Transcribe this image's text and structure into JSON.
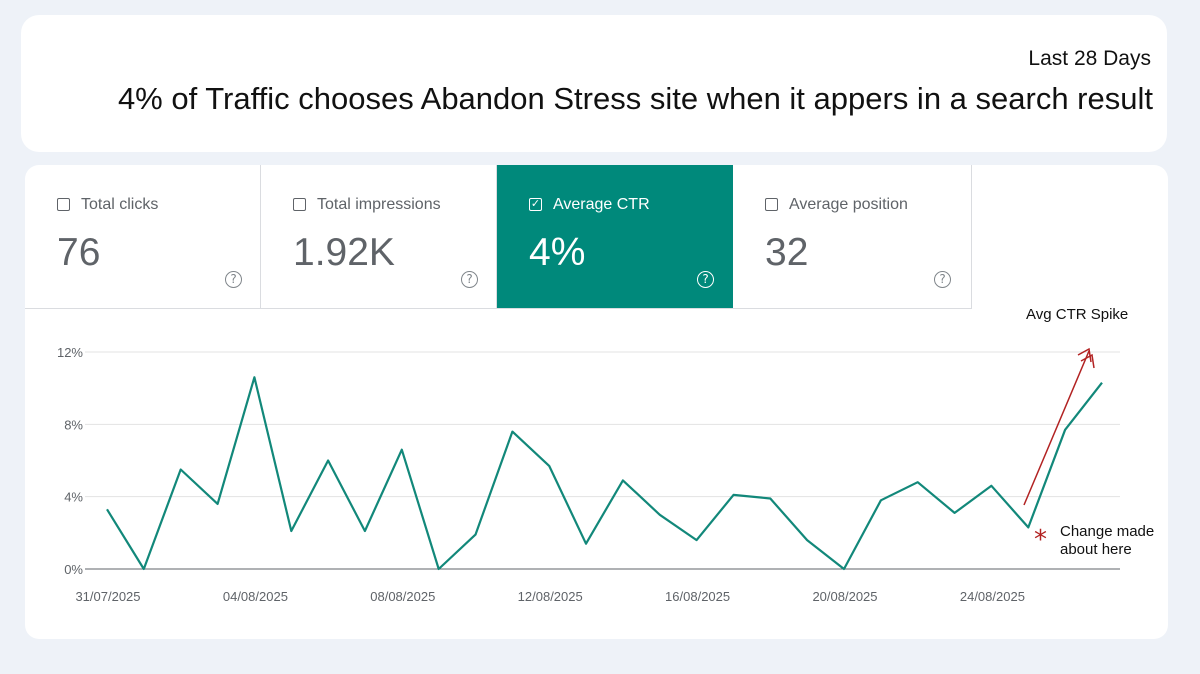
{
  "header": {
    "period": "Last 28 Days",
    "headline": "4% of Traffic chooses Abandon Stress site when it appers in a search result"
  },
  "metrics": [
    {
      "label": "Total clicks",
      "value": "76",
      "selected": false
    },
    {
      "label": "Total impressions",
      "value": "1.92K",
      "selected": false
    },
    {
      "label": "Average CTR",
      "value": "4%",
      "selected": true
    },
    {
      "label": "Average position",
      "value": "32",
      "selected": false
    }
  ],
  "help_glyph": "?",
  "check_glyph": "✓",
  "colors": {
    "accent": "#00897b",
    "line": "#12887a",
    "annotation": "#b22222"
  },
  "chart_data": {
    "type": "line",
    "title": "",
    "xlabel": "",
    "ylabel": "",
    "ylim": [
      0,
      12
    ],
    "y_ticks": [
      0,
      4,
      8,
      12
    ],
    "y_tick_labels": [
      "0%",
      "4%",
      "8%",
      "12%"
    ],
    "x_tick_labels": [
      "31/07/2025",
      "04/08/2025",
      "08/08/2025",
      "12/08/2025",
      "16/08/2025",
      "20/08/2025",
      "24/08/2025"
    ],
    "grid": true,
    "series": [
      {
        "x": [
          "31/07/2025",
          "01/08/2025",
          "02/08/2025",
          "03/08/2025",
          "04/08/2025",
          "05/08/2025",
          "06/08/2025",
          "07/08/2025",
          "08/08/2025",
          "09/08/2025",
          "10/08/2025",
          "11/08/2025",
          "12/08/2025",
          "13/08/2025",
          "14/08/2025",
          "15/08/2025",
          "16/08/2025",
          "17/08/2025",
          "18/08/2025",
          "19/08/2025",
          "20/08/2025",
          "21/08/2025",
          "22/08/2025",
          "23/08/2025",
          "24/08/2025",
          "25/08/2025",
          "26/08/2025",
          "27/08/2025"
        ],
        "values": [
          3.3,
          0,
          5.5,
          3.6,
          10.6,
          2.1,
          6.0,
          2.1,
          6.6,
          0,
          1.9,
          7.6,
          5.7,
          1.4,
          4.9,
          3.0,
          1.6,
          4.1,
          3.9,
          1.6,
          0,
          3.8,
          4.8,
          3.1,
          4.6,
          2.3,
          7.7,
          10.3
        ]
      }
    ],
    "annotations": [
      {
        "text": "Avg CTR Spike"
      },
      {
        "text_lines": [
          "Change made",
          "about here"
        ],
        "marker": "*"
      }
    ]
  }
}
